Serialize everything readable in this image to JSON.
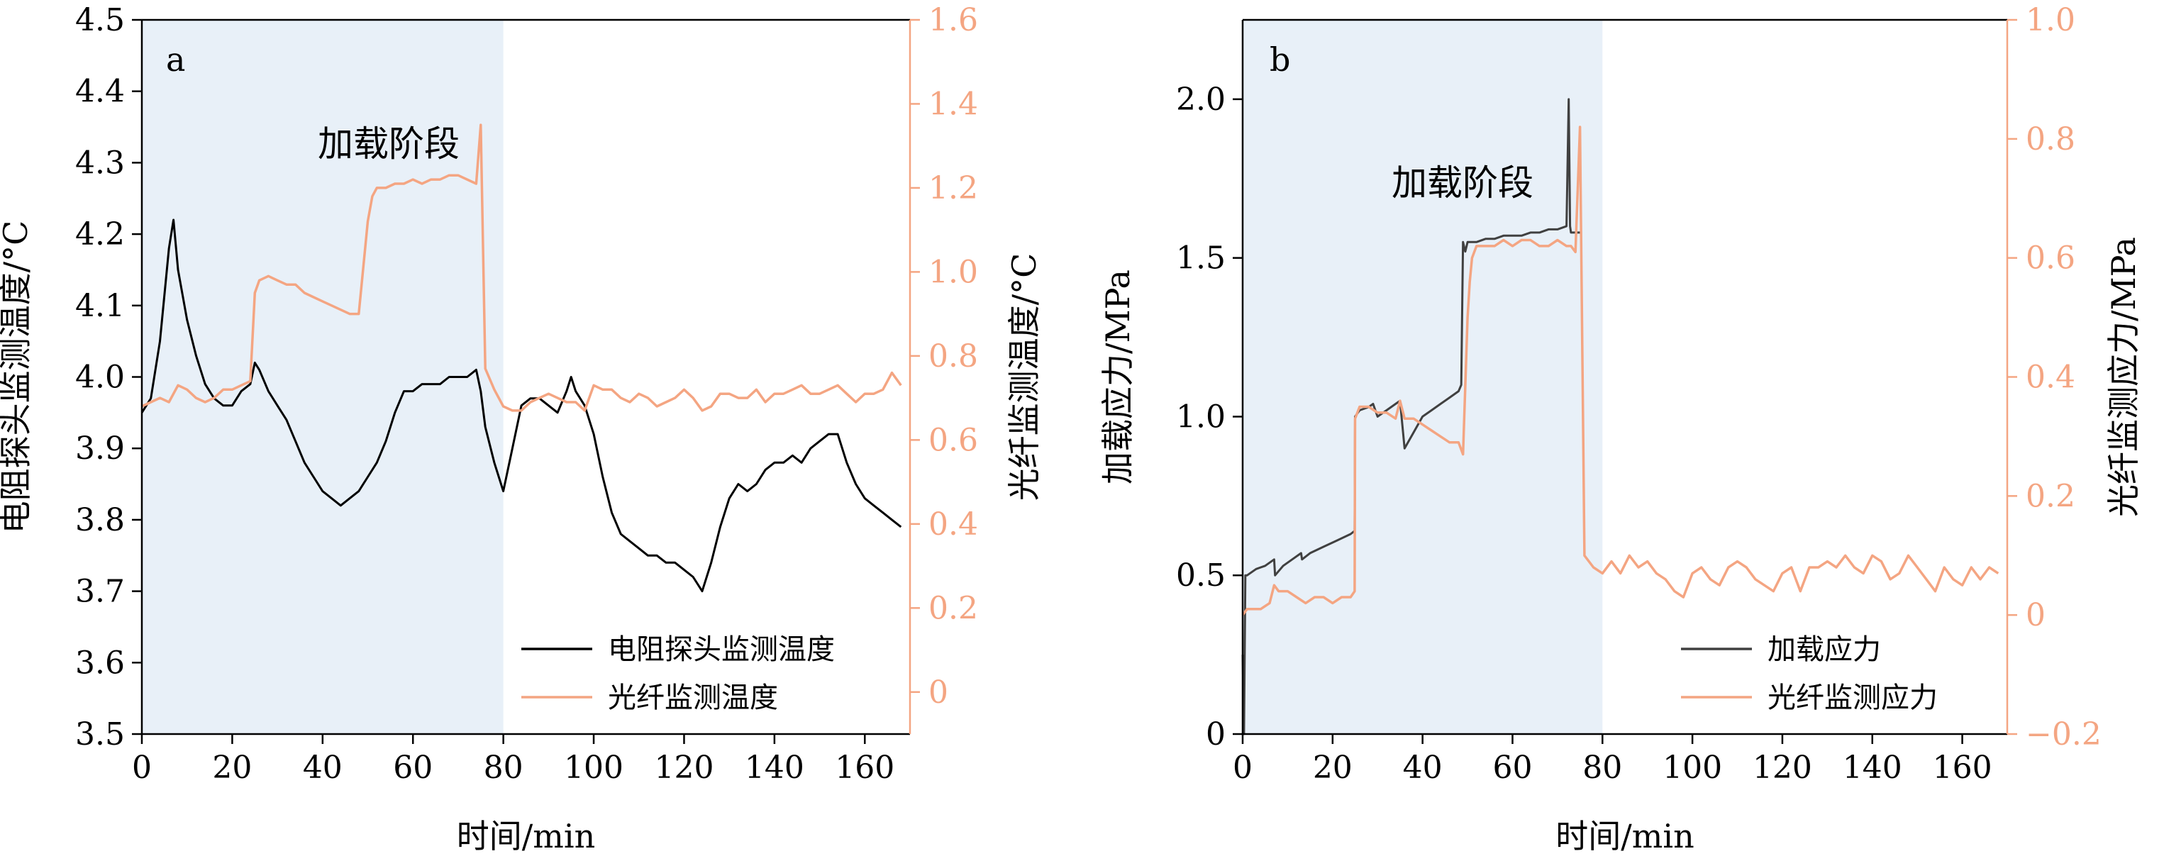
{
  "chart_data": [
    {
      "type": "line",
      "panel_label": "a",
      "xlabel": "时间/min",
      "ylabel_left": "电阻探头监测温度/°C",
      "ylabel_right": "光纤监测温度/°C",
      "xlim": [
        0,
        170
      ],
      "ylim_left": [
        3.5,
        4.5
      ],
      "ylim_right": [
        -0.1,
        1.6
      ],
      "x_ticks": [
        "0",
        "20",
        "40",
        "60",
        "80",
        "100",
        "120",
        "140",
        "160"
      ],
      "y_left_ticks": [
        "3.5",
        "3.6",
        "3.7",
        "3.8",
        "3.9",
        "4.0",
        "4.1",
        "4.2",
        "4.3",
        "4.4",
        "4.5"
      ],
      "y_right_ticks": [
        "0",
        "0.2",
        "0.4",
        "0.6",
        "0.8",
        "1.0",
        "1.2",
        "1.4",
        "1.6"
      ],
      "shaded_region": {
        "x": [
          0,
          80
        ],
        "label": "加载阶段",
        "color": "#e8f0f8"
      },
      "legend_position": "lower-right",
      "series": [
        {
          "name": "电阻探头监测温度",
          "axis": "left",
          "color": "#000000",
          "x": [
            0,
            2,
            4,
            6,
            7,
            8,
            10,
            12,
            14,
            16,
            18,
            20,
            22,
            24,
            25,
            26,
            28,
            30,
            32,
            34,
            36,
            38,
            40,
            42,
            44,
            46,
            48,
            50,
            52,
            54,
            56,
            58,
            60,
            62,
            64,
            66,
            68,
            70,
            72,
            74,
            75,
            76,
            78,
            80,
            82,
            84,
            86,
            88,
            90,
            92,
            94,
            95,
            96,
            98,
            100,
            102,
            104,
            106,
            108,
            110,
            112,
            114,
            116,
            118,
            120,
            122,
            124,
            126,
            128,
            130,
            132,
            134,
            136,
            138,
            140,
            142,
            144,
            146,
            148,
            150,
            152,
            154,
            156,
            158,
            160,
            162,
            164,
            166,
            168
          ],
          "y": [
            3.95,
            3.97,
            4.05,
            4.18,
            4.22,
            4.15,
            4.08,
            4.03,
            3.99,
            3.97,
            3.96,
            3.96,
            3.98,
            3.99,
            4.02,
            4.01,
            3.98,
            3.96,
            3.94,
            3.91,
            3.88,
            3.86,
            3.84,
            3.83,
            3.82,
            3.83,
            3.84,
            3.86,
            3.88,
            3.91,
            3.95,
            3.98,
            3.98,
            3.99,
            3.99,
            3.99,
            4.0,
            4.0,
            4.0,
            4.01,
            3.98,
            3.93,
            3.88,
            3.84,
            3.9,
            3.96,
            3.97,
            3.97,
            3.96,
            3.95,
            3.98,
            4.0,
            3.98,
            3.96,
            3.92,
            3.86,
            3.81,
            3.78,
            3.77,
            3.76,
            3.75,
            3.75,
            3.74,
            3.74,
            3.73,
            3.72,
            3.7,
            3.74,
            3.79,
            3.83,
            3.85,
            3.84,
            3.85,
            3.87,
            3.88,
            3.88,
            3.89,
            3.88,
            3.9,
            3.91,
            3.92,
            3.92,
            3.88,
            3.85,
            3.83,
            3.82,
            3.81,
            3.8,
            3.79
          ]
        },
        {
          "name": "光纤监测温度",
          "axis": "right",
          "color": "#f4a582",
          "x": [
            0,
            2,
            4,
            6,
            8,
            10,
            12,
            14,
            16,
            18,
            20,
            22,
            24,
            25,
            26,
            28,
            30,
            32,
            34,
            36,
            38,
            40,
            42,
            44,
            46,
            48,
            50,
            51,
            52,
            54,
            56,
            58,
            60,
            62,
            64,
            66,
            68,
            70,
            72,
            74,
            75,
            76,
            78,
            80,
            82,
            84,
            86,
            88,
            90,
            92,
            94,
            96,
            98,
            100,
            102,
            104,
            106,
            108,
            110,
            112,
            114,
            116,
            118,
            120,
            122,
            124,
            126,
            128,
            130,
            132,
            134,
            136,
            138,
            140,
            142,
            144,
            146,
            148,
            150,
            152,
            154,
            156,
            158,
            160,
            162,
            164,
            166,
            168
          ],
          "y": [
            0.68,
            0.69,
            0.7,
            0.69,
            0.73,
            0.72,
            0.7,
            0.69,
            0.7,
            0.72,
            0.72,
            0.73,
            0.74,
            0.95,
            0.98,
            0.99,
            0.98,
            0.97,
            0.97,
            0.95,
            0.94,
            0.93,
            0.92,
            0.91,
            0.9,
            0.9,
            1.12,
            1.18,
            1.2,
            1.2,
            1.21,
            1.21,
            1.22,
            1.21,
            1.22,
            1.22,
            1.23,
            1.23,
            1.22,
            1.21,
            1.35,
            0.77,
            0.72,
            0.68,
            0.67,
            0.67,
            0.69,
            0.7,
            0.71,
            0.7,
            0.69,
            0.69,
            0.67,
            0.73,
            0.72,
            0.72,
            0.7,
            0.69,
            0.71,
            0.7,
            0.68,
            0.69,
            0.7,
            0.72,
            0.7,
            0.67,
            0.68,
            0.71,
            0.71,
            0.7,
            0.7,
            0.72,
            0.69,
            0.71,
            0.71,
            0.72,
            0.73,
            0.71,
            0.71,
            0.72,
            0.73,
            0.71,
            0.69,
            0.71,
            0.71,
            0.72,
            0.76,
            0.73
          ]
        }
      ]
    },
    {
      "type": "line",
      "panel_label": "b",
      "xlabel": "时间/min",
      "ylabel_left": "加载应力/MPa",
      "ylabel_right": "光纤监测应力/MPa",
      "xlim": [
        0,
        170
      ],
      "ylim_left": [
        0,
        2.25
      ],
      "ylim_right": [
        -0.2,
        1.0
      ],
      "x_ticks": [
        "0",
        "20",
        "40",
        "60",
        "80",
        "100",
        "120",
        "140",
        "160"
      ],
      "y_left_ticks": [
        "0",
        "0.5",
        "1.0",
        "1.5",
        "2.0"
      ],
      "y_right_ticks": [
        "−0.2",
        "0",
        "0.2",
        "0.4",
        "0.6",
        "0.8",
        "1.0"
      ],
      "shaded_region": {
        "x": [
          0,
          80
        ],
        "label": "加载阶段",
        "color": "#e8f0f8"
      },
      "legend_position": "lower-right",
      "series": [
        {
          "name": "加载应力",
          "axis": "left",
          "color": "#404040",
          "x": [
            0,
            0.3,
            0.6,
            1,
            3,
            5,
            7,
            7.2,
            9,
            11,
            13,
            13.2,
            15,
            18,
            21,
            24,
            24.9,
            25,
            26,
            28,
            29,
            30,
            32,
            34,
            35,
            36,
            38,
            40,
            42,
            44,
            46,
            48,
            48.6,
            49,
            49.5,
            50,
            52,
            54,
            56,
            58,
            60,
            62,
            64,
            66,
            68,
            70,
            72,
            72.5,
            72.8,
            73,
            74,
            75
          ],
          "y": [
            0.25,
            0.0,
            0.5,
            0.5,
            0.52,
            0.53,
            0.55,
            0.5,
            0.53,
            0.55,
            0.57,
            0.55,
            0.57,
            0.59,
            0.61,
            0.63,
            0.64,
            1.0,
            1.02,
            1.03,
            1.04,
            1.0,
            1.02,
            1.04,
            1.05,
            0.9,
            0.95,
            1.0,
            1.02,
            1.04,
            1.06,
            1.08,
            1.1,
            1.55,
            1.52,
            1.55,
            1.55,
            1.56,
            1.56,
            1.57,
            1.57,
            1.57,
            1.58,
            1.58,
            1.59,
            1.59,
            1.6,
            2.0,
            1.6,
            1.58,
            1.58,
            1.58
          ]
        },
        {
          "name": "光纤监测应力",
          "axis": "right",
          "color": "#f4a582",
          "x": [
            0,
            1,
            2,
            4,
            6,
            7,
            8,
            10,
            12,
            14,
            16,
            18,
            20,
            22,
            24,
            24.9,
            25,
            26,
            28,
            30,
            32,
            34,
            35,
            36,
            38,
            40,
            42,
            44,
            46,
            48,
            49,
            50,
            50.5,
            51,
            52,
            54,
            56,
            58,
            60,
            62,
            64,
            66,
            68,
            70,
            72,
            73,
            74,
            75,
            76,
            78,
            80,
            82,
            84,
            86,
            88,
            90,
            92,
            94,
            96,
            98,
            100,
            102,
            104,
            106,
            108,
            110,
            112,
            114,
            116,
            118,
            120,
            122,
            124,
            126,
            128,
            130,
            132,
            134,
            136,
            138,
            140,
            142,
            144,
            146,
            148,
            150,
            152,
            154,
            156,
            158,
            160,
            162,
            164,
            166,
            168
          ],
          "y": [
            0.0,
            0.01,
            0.01,
            0.01,
            0.02,
            0.05,
            0.04,
            0.04,
            0.03,
            0.02,
            0.03,
            0.03,
            0.02,
            0.03,
            0.03,
            0.04,
            0.33,
            0.35,
            0.35,
            0.34,
            0.34,
            0.33,
            0.36,
            0.33,
            0.33,
            0.32,
            0.31,
            0.3,
            0.29,
            0.29,
            0.27,
            0.5,
            0.56,
            0.6,
            0.62,
            0.62,
            0.62,
            0.63,
            0.62,
            0.63,
            0.63,
            0.62,
            0.62,
            0.63,
            0.62,
            0.62,
            0.61,
            0.82,
            0.1,
            0.08,
            0.07,
            0.09,
            0.07,
            0.1,
            0.08,
            0.09,
            0.07,
            0.06,
            0.04,
            0.03,
            0.07,
            0.08,
            0.06,
            0.05,
            0.08,
            0.09,
            0.08,
            0.06,
            0.05,
            0.04,
            0.07,
            0.08,
            0.04,
            0.08,
            0.08,
            0.09,
            0.08,
            0.1,
            0.08,
            0.07,
            0.1,
            0.09,
            0.06,
            0.07,
            0.1,
            0.08,
            0.06,
            0.04,
            0.08,
            0.06,
            0.05,
            0.08,
            0.06,
            0.08,
            0.07
          ]
        }
      ]
    }
  ]
}
